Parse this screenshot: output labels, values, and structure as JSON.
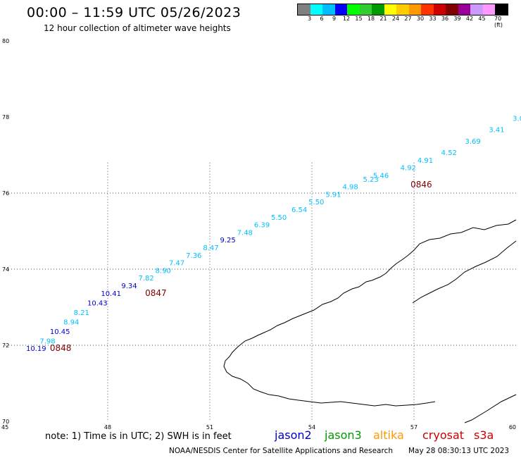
{
  "header": {
    "title": "00:00 – 11:59 UTC 05/26/2023",
    "subtitle": "12 hour collection of altimeter wave heights"
  },
  "colorbar": {
    "colors": [
      "#808080",
      "#00ffff",
      "#00bfff",
      "#0000ff",
      "#00ff00",
      "#33cc33",
      "#009900",
      "#ffff00",
      "#ffcc00",
      "#ff9900",
      "#ff3300",
      "#cc0000",
      "#800000",
      "#990099",
      "#cc99ff",
      "#ff99ff",
      "#000000"
    ],
    "labels": [
      "3",
      "6",
      "9",
      "12",
      "15",
      "18",
      "21",
      "24",
      "27",
      "30",
      "33",
      "36",
      "39",
      "42",
      "45",
      "70 (ft)"
    ]
  },
  "map": {
    "lon_range": [
      45,
      60
    ],
    "lat_range": [
      70,
      80
    ],
    "lon_ticks": [
      "45",
      "48",
      "51",
      "54",
      "57",
      "60"
    ],
    "lat_ticks": [
      "80",
      "78",
      "76",
      "74",
      "72",
      "70"
    ],
    "grid_lons": [
      48,
      51,
      54,
      57
    ],
    "grid_lats": [
      72,
      74,
      76
    ],
    "observations": [
      {
        "v": "10.19",
        "c": "#0000cc",
        "lon": 45.6,
        "lat": 71.85
      },
      {
        "v": "7.98",
        "c": "#00bfff",
        "lon": 46.0,
        "lat": 72.05
      },
      {
        "v": "10.45",
        "c": "#0000cc",
        "lon": 46.3,
        "lat": 72.3
      },
      {
        "v": "8.94",
        "c": "#00bfff",
        "lon": 46.7,
        "lat": 72.55
      },
      {
        "v": "8.21",
        "c": "#00bfff",
        "lon": 47.0,
        "lat": 72.8
      },
      {
        "v": "10.43",
        "c": "#0000cc",
        "lon": 47.4,
        "lat": 73.05
      },
      {
        "v": "10.41",
        "c": "#0000cc",
        "lon": 47.8,
        "lat": 73.3
      },
      {
        "v": "9.34",
        "c": "#0000cc",
        "lon": 48.4,
        "lat": 73.5
      },
      {
        "v": "7.82",
        "c": "#00bfff",
        "lon": 48.9,
        "lat": 73.7
      },
      {
        "v": "8.90",
        "c": "#00bfff",
        "lon": 49.4,
        "lat": 73.9
      },
      {
        "v": "7.47",
        "c": "#00bfff",
        "lon": 49.8,
        "lat": 74.1
      },
      {
        "v": "7.36",
        "c": "#00bfff",
        "lon": 50.3,
        "lat": 74.3
      },
      {
        "v": "8.47",
        "c": "#00bfff",
        "lon": 50.8,
        "lat": 74.5
      },
      {
        "v": "9.25",
        "c": "#0000cc",
        "lon": 51.3,
        "lat": 74.7
      },
      {
        "v": "7.48",
        "c": "#00bfff",
        "lon": 51.8,
        "lat": 74.9
      },
      {
        "v": "6.39",
        "c": "#00bfff",
        "lon": 52.3,
        "lat": 75.1
      },
      {
        "v": "5.50",
        "c": "#00bfff",
        "lon": 52.8,
        "lat": 75.3
      },
      {
        "v": "6.54",
        "c": "#00bfff",
        "lon": 53.4,
        "lat": 75.5
      },
      {
        "v": "5.50",
        "c": "#00bfff",
        "lon": 53.9,
        "lat": 75.7
      },
      {
        "v": "5.91",
        "c": "#00bfff",
        "lon": 54.4,
        "lat": 75.9
      },
      {
        "v": "4.98",
        "c": "#00bfff",
        "lon": 54.9,
        "lat": 76.1
      },
      {
        "v": "5.23",
        "c": "#00bfff",
        "lon": 55.5,
        "lat": 76.3
      },
      {
        "v": "5.46",
        "c": "#00bfff",
        "lon": 55.8,
        "lat": 76.4
      },
      {
        "v": "4.92",
        "c": "#00bfff",
        "lon": 56.6,
        "lat": 76.6
      },
      {
        "v": "4.91",
        "c": "#00bfff",
        "lon": 57.1,
        "lat": 76.8
      },
      {
        "v": "4.52",
        "c": "#00bfff",
        "lon": 57.8,
        "lat": 77.0
      },
      {
        "v": "3.69",
        "c": "#00bfff",
        "lon": 58.5,
        "lat": 77.3
      },
      {
        "v": "3.41",
        "c": "#00bfff",
        "lon": 59.2,
        "lat": 77.6
      },
      {
        "v": "3.0",
        "c": "#00bfff",
        "lon": 59.9,
        "lat": 77.9
      }
    ],
    "times": [
      {
        "t": "0848",
        "lon": 46.3,
        "lat": 71.85
      },
      {
        "t": "0847",
        "lon": 49.1,
        "lat": 73.3
      },
      {
        "t": "0846",
        "lon": 56.9,
        "lat": 76.15
      }
    ]
  },
  "footer": {
    "note": "note:  1) Time is in UTC;  2) SWH is in feet",
    "satellites": [
      {
        "name": "jason2",
        "color": "#0000cc"
      },
      {
        "name": "jason3",
        "color": "#009900"
      },
      {
        "name": "altika",
        "color": "#ff9900"
      },
      {
        "name": "cryosat",
        "color": "#cc0000"
      },
      {
        "name": "s3a",
        "color": "#cc0000"
      }
    ],
    "credit": "NOAA/NESDIS Center for Satellite Applications and Research",
    "timestamp": "May 28 08:30:13 UTC 2023"
  }
}
